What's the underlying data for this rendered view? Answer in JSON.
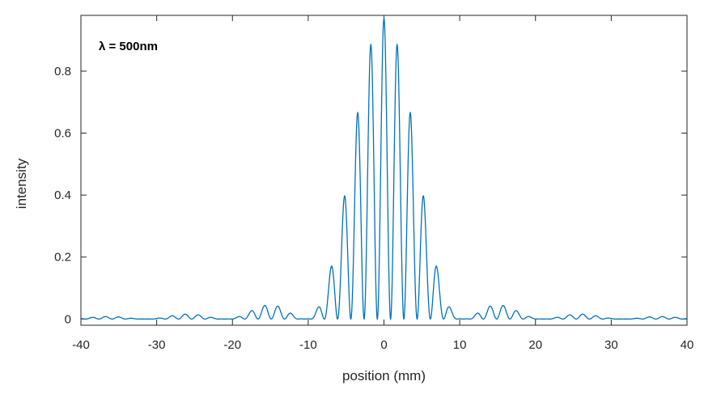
{
  "chart_data": {
    "type": "line",
    "title": "",
    "xlabel": "position (mm)",
    "ylabel": "intensity",
    "xlim": [
      -40,
      40
    ],
    "ylim": [
      -0.02,
      0.98
    ],
    "xticks": [
      -40,
      -30,
      -20,
      -10,
      0,
      10,
      20,
      30,
      40
    ],
    "xtick_labels": [
      "-40",
      "-30",
      "-20",
      "-10",
      "0",
      "10",
      "20",
      "30",
      "40"
    ],
    "yticks": [
      0,
      0.2,
      0.4,
      0.6,
      0.8
    ],
    "ytick_labels": [
      "0",
      "0.2",
      "0.4",
      "0.6",
      "0.8"
    ],
    "grid": false,
    "line_color": "#0072BD",
    "annotation": "λ = 500nm",
    "model": {
      "form": "I(x) = I0 * sinc(x / single_slit_zero_spacing)^2 * cos(pi * x / fringe_spacing)^2",
      "I0": 0.97,
      "single_slit_zero_spacing_mm": 10.5,
      "fringe_spacing_mm": 1.75,
      "x_range": [
        -40,
        40
      ]
    },
    "peaks": [
      {
        "x": 0.0,
        "y": 0.97
      },
      {
        "x": -1.75,
        "y": 0.905
      },
      {
        "x": 1.75,
        "y": 0.905
      },
      {
        "x": -3.5,
        "y": 0.685
      },
      {
        "x": 3.5,
        "y": 0.685
      },
      {
        "x": -5.25,
        "y": 0.41
      },
      {
        "x": 5.25,
        "y": 0.41
      },
      {
        "x": -7.0,
        "y": 0.175
      },
      {
        "x": 7.0,
        "y": 0.175
      },
      {
        "x": -14.0,
        "y": 0.045
      },
      {
        "x": 14.0,
        "y": 0.045
      },
      {
        "x": -15.75,
        "y": 0.045
      },
      {
        "x": 15.75,
        "y": 0.045
      }
    ]
  }
}
